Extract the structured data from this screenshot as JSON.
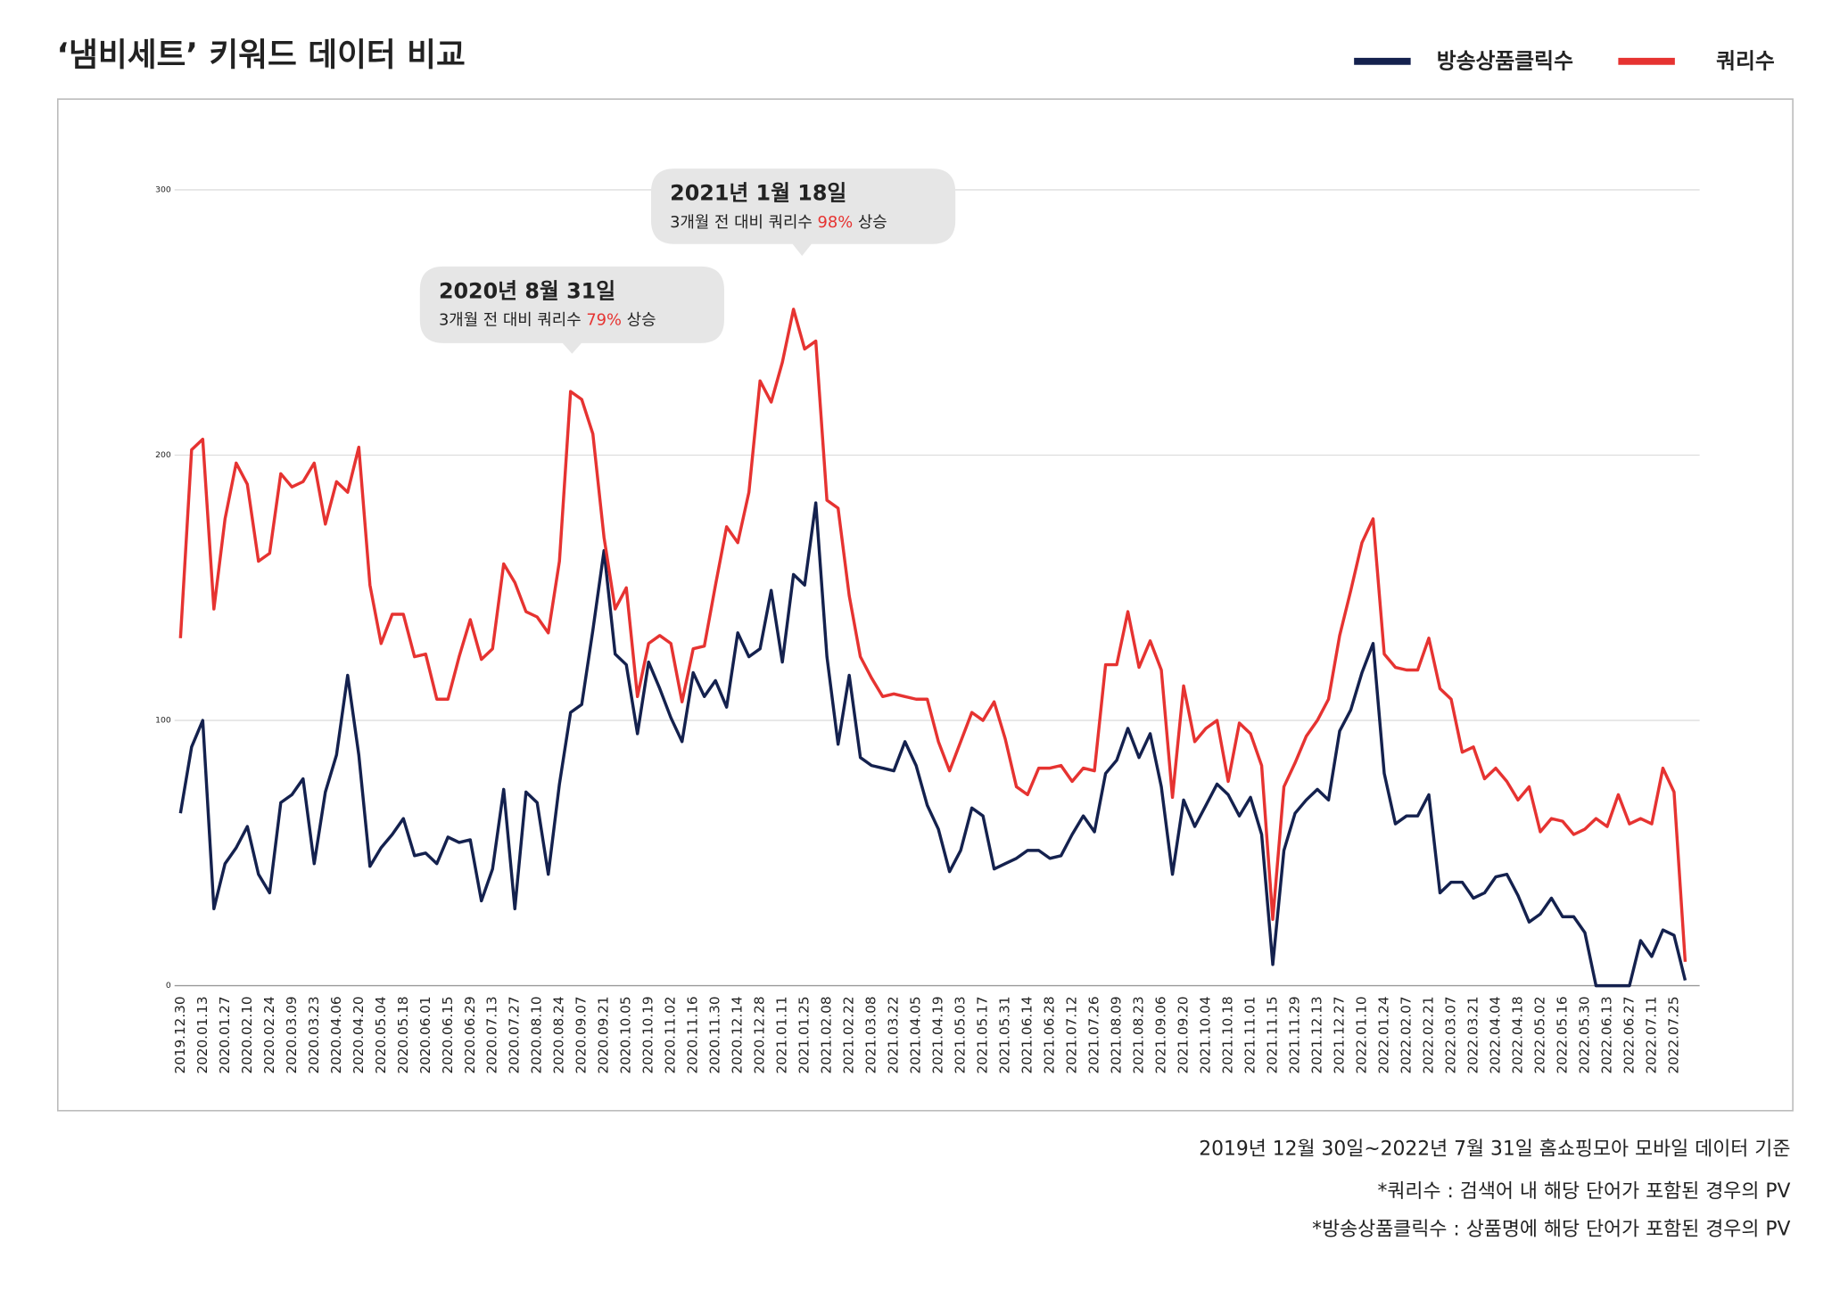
{
  "chart_data": {
    "type": "line",
    "title": "‘냄비세트’ 키워드 데이터 비교",
    "categories": [
      "2019.12.30",
      null,
      "2020.01.13",
      null,
      "2020.01.27",
      null,
      "2020.02.10",
      null,
      "2020.02.24",
      null,
      "2020.03.09",
      null,
      "2020.03.23",
      null,
      "2020.04.06",
      null,
      "2020.04.20",
      null,
      "2020.05.04",
      null,
      "2020.05.18",
      null,
      "2020.06.01",
      null,
      "2020.06.15",
      null,
      "2020.06.29",
      null,
      "2020.07.13",
      null,
      "2020.07.27",
      null,
      "2020.08.10",
      null,
      "2020.08.24",
      null,
      "2020.09.07",
      null,
      "2020.09.21",
      null,
      "2020.10.05",
      null,
      "2020.10.19",
      null,
      "2020.11.02",
      null,
      "2020.11.16",
      null,
      "2020.11.30",
      null,
      "2020.12.14",
      null,
      "2020.12.28",
      null,
      "2021.01.11",
      null,
      "2021.01.25",
      null,
      "2021.02.08",
      null,
      "2021.02.22",
      null,
      "2021.03.08",
      null,
      "2021.03.22",
      null,
      "2021.04.05",
      null,
      "2021.04.19",
      null,
      "2021.05.03",
      null,
      "2021.05.17",
      null,
      "2021.05.31",
      null,
      "2021.06.14",
      null,
      "2021.06.28",
      null,
      "2021.07.12",
      null,
      "2021.07.26",
      null,
      "2021.08.09",
      null,
      "2021.08.23",
      null,
      "2021.09.06",
      null,
      "2021.09.20",
      null,
      "2021.10.04",
      null,
      "2021.10.18",
      null,
      "2021.11.01",
      null,
      "2021.11.15",
      null,
      "2021.11.29",
      null,
      "2021.12.13",
      null,
      "2021.12.27",
      null,
      "2022.01.10",
      null,
      "2022.01.24",
      null,
      "2022.02.07",
      null,
      "2022.02.21",
      null,
      "2022.03.07",
      null,
      "2022.03.21",
      null,
      "2022.04.04",
      null,
      "2022.04.18",
      null,
      "2022.05.02",
      null,
      "2022.05.16",
      null,
      "2022.05.30",
      null,
      "2022.06.13",
      null,
      "2022.06.27",
      null,
      "2022.07.11",
      null,
      "2022.07.25",
      null
    ],
    "series": [
      {
        "name": "방송상품클릭수",
        "color": "#14214e",
        "values": [
          65,
          90,
          100,
          29,
          46,
          52,
          60,
          42,
          35,
          69,
          72,
          78,
          46,
          73,
          87,
          117,
          87,
          45,
          52,
          57,
          63,
          49,
          50,
          46,
          56,
          54,
          55,
          32,
          44,
          74,
          29,
          73,
          69,
          42,
          76,
          103,
          106,
          134,
          164,
          125,
          121,
          95,
          122,
          112,
          101,
          92,
          118,
          109,
          115,
          105,
          133,
          124,
          127,
          149,
          122,
          155,
          151,
          182,
          124,
          91,
          117,
          86,
          83,
          82,
          81,
          92,
          83,
          68,
          59,
          43,
          51,
          67,
          64,
          44,
          46,
          48,
          51,
          51,
          48,
          49,
          57,
          64,
          58,
          80,
          85,
          97,
          86,
          95,
          75,
          42,
          70,
          60,
          68,
          76,
          72,
          64,
          71,
          57,
          8,
          51,
          65,
          70,
          74,
          70,
          96,
          104,
          118,
          129,
          80,
          61,
          64,
          64,
          72,
          35,
          39,
          39,
          33,
          35,
          41,
          42,
          34,
          24,
          27,
          33,
          26,
          26,
          20,
          0,
          0,
          0,
          0,
          17,
          11,
          21,
          19,
          2
        ]
      },
      {
        "name": "쿼리수",
        "color": "#e63331",
        "values": [
          131,
          202,
          206,
          142,
          176,
          197,
          189,
          160,
          163,
          193,
          188,
          190,
          197,
          174,
          190,
          186,
          203,
          151,
          129,
          140,
          140,
          124,
          125,
          108,
          108,
          124,
          138,
          123,
          127,
          159,
          152,
          141,
          139,
          133,
          160,
          224,
          221,
          208,
          169,
          142,
          150,
          109,
          129,
          132,
          129,
          107,
          127,
          128,
          151,
          173,
          167,
          186,
          228,
          220,
          235,
          255,
          240,
          243,
          183,
          180,
          147,
          124,
          116,
          109,
          110,
          109,
          108,
          108,
          92,
          81,
          92,
          103,
          100,
          107,
          93,
          75,
          72,
          82,
          82,
          83,
          77,
          82,
          81,
          121,
          121,
          141,
          120,
          130,
          119,
          71,
          113,
          92,
          97,
          100,
          77,
          99,
          95,
          83,
          25,
          75,
          84,
          94,
          100,
          108,
          132,
          149,
          167,
          176,
          125,
          120,
          119,
          119,
          131,
          112,
          108,
          88,
          90,
          78,
          82,
          77,
          70,
          75,
          58,
          63,
          62,
          57,
          59,
          63,
          60,
          72,
          61,
          63,
          61,
          82,
          73,
          9
        ]
      }
    ],
    "ylim": [
      0,
      300
    ],
    "yticks": [
      0,
      100,
      200,
      300
    ],
    "grid": true,
    "annotations": [
      {
        "title": "2021년 1월 18일",
        "before": "3개월 전 대비 쿼리수 ",
        "highlight": "98%",
        "after": " 상승",
        "index": 55
      },
      {
        "title": "2020년 8월 31일",
        "before": "3개월 전 대비 쿼리수 ",
        "highlight": "79%",
        "after": " 상승",
        "index": 35
      }
    ],
    "notes": [
      "2019년 12월 30일~2022년 7월 31일 홈쇼핑모아 모바일 데이터 기준",
      "*쿼리수 : 검색어 내 해당 단어가 포함된 경우의 PV",
      "*방송상품클릭수 : 상품명에 해당 단어가 포함된 경우의 PV"
    ]
  }
}
